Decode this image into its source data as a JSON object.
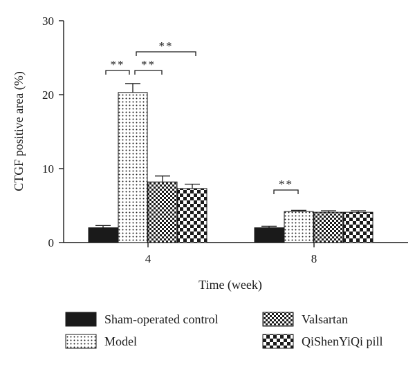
{
  "chart_data": {
    "type": "bar",
    "xlabel": "Time (week)",
    "ylabel": "CTGF positive area (%)",
    "ylim": [
      0,
      30
    ],
    "yticks": [
      0,
      10,
      20,
      30
    ],
    "categories": [
      "4",
      "8"
    ],
    "series": [
      {
        "name": "Sham-operated control",
        "pattern": "solid",
        "values": [
          2.0,
          2.0
        ],
        "errors": [
          0.3,
          0.2
        ]
      },
      {
        "name": "Model",
        "pattern": "dots",
        "values": [
          20.3,
          4.2
        ],
        "errors": [
          1.2,
          0.15
        ]
      },
      {
        "name": "Valsartan",
        "pattern": "fine-checker",
        "values": [
          8.2,
          4.1
        ],
        "errors": [
          0.8,
          0.2
        ]
      },
      {
        "name": "QiShenYiQi pill",
        "pattern": "coarse-checker",
        "values": [
          7.3,
          4.1
        ],
        "errors": [
          0.6,
          0.2
        ]
      }
    ],
    "significance": [
      {
        "category": "4",
        "from": 0,
        "to": 1,
        "label": "**"
      },
      {
        "category": "4",
        "from": 1,
        "to": 2,
        "label": "**"
      },
      {
        "category": "4",
        "from": 1,
        "to": 3,
        "label": "**"
      },
      {
        "category": "8",
        "from": 0,
        "to": 1,
        "label": "**"
      }
    ],
    "legend_position": "bottom"
  }
}
